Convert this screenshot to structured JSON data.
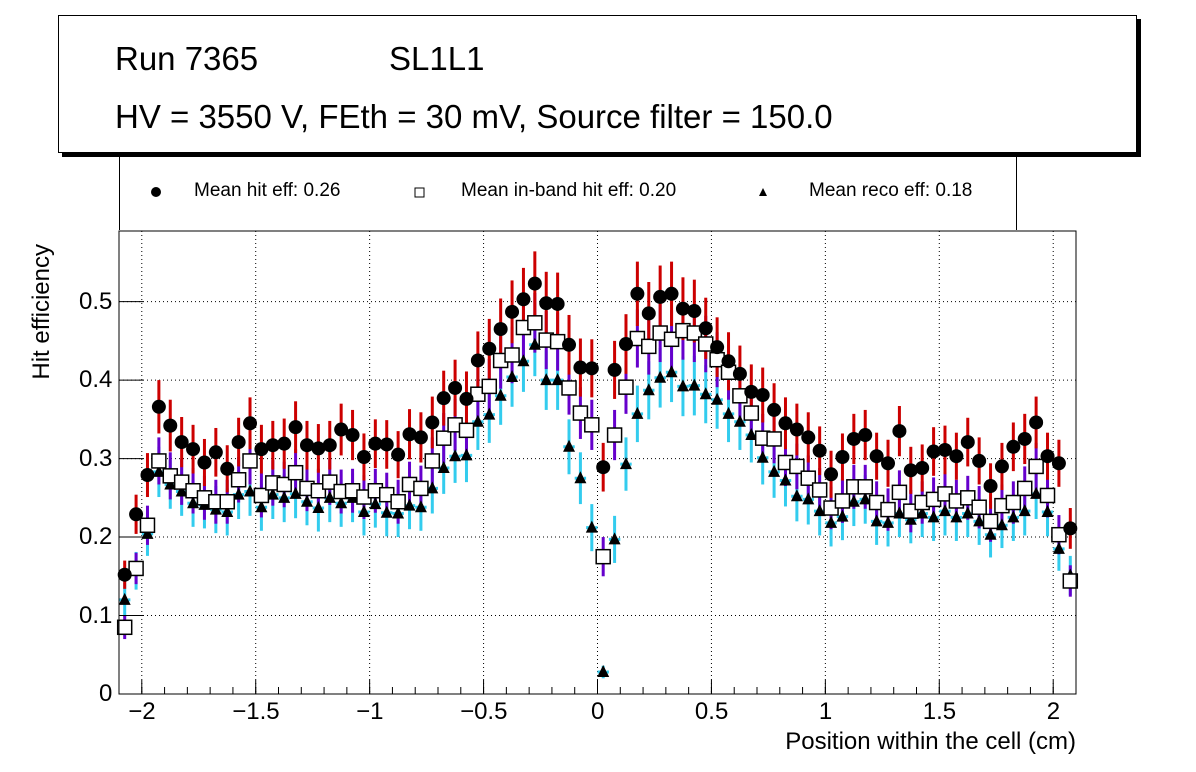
{
  "title_box": {
    "run": "Run 7365",
    "layer": "SL1L1",
    "conditions": "HV = 3550 V, FEth = 30 mV, Source filter = 150.0"
  },
  "legend": [
    {
      "marker": "filled-circle",
      "label": "Mean hit  eff: 0.26"
    },
    {
      "marker": "open-square",
      "label": "Mean in-band hit eff: 0.20"
    },
    {
      "marker": "filled-triangle",
      "label": "Mean reco eff: 0.18"
    }
  ],
  "colors": {
    "hit_err": "#cc0000",
    "inband_err": "#6600cc",
    "reco_err": "#33ccee",
    "marker": "#000000",
    "grid": "#000000"
  },
  "chart_data": {
    "type": "scatter",
    "title": "Run 7365 SL1L1 — HV = 3550 V, FEth = 30 mV, Source filter = 150.0",
    "xlabel": "Position within the cell (cm)",
    "ylabel": "Hit efficiency",
    "xlim": [
      -2.1,
      2.1
    ],
    "ylim": [
      0,
      0.59
    ],
    "xticks": [
      -2,
      -1.5,
      -1,
      -0.5,
      0,
      0.5,
      1,
      1.5,
      2
    ],
    "xtick_labels": [
      "−2",
      "−1.5",
      "−1",
      "−0.5",
      "0",
      "0.5",
      "1",
      "1.5",
      "2"
    ],
    "yticks": [
      0,
      0.1,
      0.2,
      0.3,
      0.4,
      0.5
    ],
    "ytick_labels": [
      "0",
      "0.1",
      "0.2",
      "0.3",
      "0.4",
      "0.5"
    ],
    "grid": true,
    "legend_position": "top",
    "bin_width": 0.05,
    "x_start": -2.075,
    "series": [
      {
        "name": "Mean hit  eff: 0.26",
        "marker": "filled-circle",
        "values": [
          0.152,
          0.229,
          0.279,
          0.366,
          0.342,
          0.321,
          0.312,
          0.295,
          0.308,
          0.287,
          0.321,
          0.345,
          0.312,
          0.317,
          0.319,
          0.34,
          0.317,
          0.313,
          0.317,
          0.337,
          0.33,
          0.302,
          0.319,
          0.318,
          0.305,
          0.331,
          0.327,
          0.346,
          0.377,
          0.39,
          0.376,
          0.425,
          0.44,
          0.465,
          0.487,
          0.503,
          0.523,
          0.498,
          0.497,
          0.445,
          0.416,
          0.415,
          0.289,
          0.413,
          0.446,
          0.51,
          0.485,
          0.506,
          0.51,
          0.491,
          0.488,
          0.466,
          0.442,
          0.424,
          0.408,
          0.385,
          0.381,
          0.362,
          0.345,
          0.337,
          0.327,
          0.31,
          0.28,
          0.302,
          0.325,
          0.33,
          0.303,
          0.294,
          0.335,
          0.285,
          0.288,
          0.309,
          0.311,
          0.303,
          0.321,
          0.297,
          0.265,
          0.29,
          0.315,
          0.325,
          0.346,
          0.303,
          0.294,
          0.211
        ],
        "errors": [
          0.018,
          0.025,
          0.028,
          0.034,
          0.033,
          0.032,
          0.031,
          0.03,
          0.031,
          0.03,
          0.031,
          0.033,
          0.031,
          0.031,
          0.032,
          0.033,
          0.031,
          0.031,
          0.031,
          0.033,
          0.032,
          0.03,
          0.031,
          0.031,
          0.03,
          0.032,
          0.032,
          0.033,
          0.035,
          0.036,
          0.035,
          0.037,
          0.038,
          0.039,
          0.04,
          0.04,
          0.041,
          0.04,
          0.04,
          0.038,
          0.037,
          0.037,
          0.031,
          0.037,
          0.038,
          0.041,
          0.04,
          0.04,
          0.041,
          0.04,
          0.04,
          0.039,
          0.038,
          0.037,
          0.036,
          0.035,
          0.035,
          0.034,
          0.033,
          0.033,
          0.032,
          0.031,
          0.03,
          0.03,
          0.032,
          0.032,
          0.03,
          0.03,
          0.032,
          0.03,
          0.03,
          0.031,
          0.031,
          0.03,
          0.031,
          0.03,
          0.029,
          0.03,
          0.031,
          0.032,
          0.033,
          0.03,
          0.03,
          0.026
        ]
      },
      {
        "name": "Mean in-band hit eff: 0.20",
        "marker": "open-square",
        "values": [
          0.085,
          0.16,
          0.215,
          0.297,
          0.278,
          0.27,
          0.259,
          0.25,
          0.245,
          0.245,
          0.273,
          0.297,
          0.253,
          0.269,
          0.267,
          0.282,
          0.262,
          0.259,
          0.27,
          0.258,
          0.259,
          0.251,
          0.259,
          0.254,
          0.245,
          0.267,
          0.262,
          0.297,
          0.326,
          0.343,
          0.336,
          0.382,
          0.392,
          0.425,
          0.432,
          0.467,
          0.473,
          0.451,
          0.449,
          0.39,
          0.358,
          0.343,
          0.175,
          0.33,
          0.391,
          0.453,
          0.443,
          0.46,
          0.452,
          0.463,
          0.46,
          0.446,
          0.426,
          0.41,
          0.38,
          0.358,
          0.326,
          0.325,
          0.295,
          0.29,
          0.275,
          0.26,
          0.237,
          0.246,
          0.264,
          0.264,
          0.244,
          0.235,
          0.257,
          0.233,
          0.244,
          0.248,
          0.255,
          0.246,
          0.25,
          0.238,
          0.22,
          0.24,
          0.244,
          0.262,
          0.29,
          0.253,
          0.203,
          0.144
        ],
        "errors": [
          0.015,
          0.02,
          0.025,
          0.03,
          0.03,
          0.029,
          0.029,
          0.028,
          0.028,
          0.028,
          0.029,
          0.03,
          0.028,
          0.029,
          0.029,
          0.03,
          0.029,
          0.028,
          0.029,
          0.028,
          0.028,
          0.028,
          0.028,
          0.028,
          0.028,
          0.029,
          0.029,
          0.03,
          0.032,
          0.033,
          0.032,
          0.034,
          0.035,
          0.036,
          0.036,
          0.037,
          0.038,
          0.037,
          0.037,
          0.034,
          0.033,
          0.032,
          0.025,
          0.032,
          0.034,
          0.037,
          0.036,
          0.037,
          0.037,
          0.037,
          0.037,
          0.036,
          0.035,
          0.035,
          0.033,
          0.032,
          0.031,
          0.031,
          0.03,
          0.029,
          0.029,
          0.028,
          0.027,
          0.028,
          0.028,
          0.028,
          0.027,
          0.027,
          0.028,
          0.027,
          0.027,
          0.028,
          0.028,
          0.027,
          0.028,
          0.027,
          0.026,
          0.027,
          0.027,
          0.028,
          0.03,
          0.028,
          0.025,
          0.02
        ]
      },
      {
        "name": "Mean reco eff: 0.18",
        "marker": "filled-triangle",
        "values": [
          0.12,
          0.157,
          0.204,
          0.283,
          0.267,
          0.258,
          0.243,
          0.241,
          0.235,
          0.232,
          0.254,
          0.258,
          0.238,
          0.254,
          0.25,
          0.255,
          0.245,
          0.237,
          0.25,
          0.243,
          0.25,
          0.232,
          0.242,
          0.231,
          0.23,
          0.24,
          0.238,
          0.262,
          0.288,
          0.303,
          0.304,
          0.347,
          0.356,
          0.38,
          0.404,
          0.424,
          0.445,
          0.4,
          0.4,
          0.315,
          0.275,
          0.212,
          0.028,
          0.197,
          0.293,
          0.357,
          0.387,
          0.403,
          0.41,
          0.392,
          0.393,
          0.382,
          0.375,
          0.357,
          0.347,
          0.33,
          0.301,
          0.283,
          0.272,
          0.252,
          0.248,
          0.233,
          0.218,
          0.226,
          0.245,
          0.248,
          0.22,
          0.218,
          0.23,
          0.222,
          0.23,
          0.225,
          0.233,
          0.225,
          0.23,
          0.22,
          0.203,
          0.215,
          0.225,
          0.233,
          0.255,
          0.232,
          0.185,
          0.151
        ],
        "errors": [
          0.022,
          0.024,
          0.028,
          0.032,
          0.031,
          0.031,
          0.03,
          0.03,
          0.03,
          0.03,
          0.031,
          0.031,
          0.03,
          0.031,
          0.031,
          0.031,
          0.03,
          0.03,
          0.031,
          0.03,
          0.031,
          0.03,
          0.03,
          0.03,
          0.03,
          0.03,
          0.03,
          0.032,
          0.033,
          0.034,
          0.034,
          0.036,
          0.036,
          0.037,
          0.038,
          0.039,
          0.04,
          0.038,
          0.038,
          0.035,
          0.033,
          0.03,
          0.008,
          0.03,
          0.034,
          0.036,
          0.037,
          0.038,
          0.038,
          0.038,
          0.038,
          0.037,
          0.037,
          0.036,
          0.036,
          0.035,
          0.034,
          0.033,
          0.033,
          0.032,
          0.032,
          0.031,
          0.03,
          0.03,
          0.031,
          0.031,
          0.03,
          0.03,
          0.03,
          0.03,
          0.03,
          0.03,
          0.031,
          0.03,
          0.03,
          0.03,
          0.029,
          0.029,
          0.03,
          0.031,
          0.032,
          0.031,
          0.028,
          0.025
        ]
      }
    ]
  }
}
